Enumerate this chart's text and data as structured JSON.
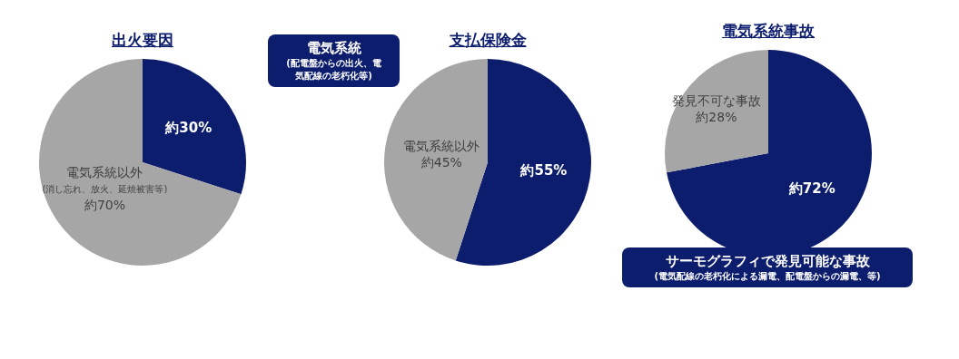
{
  "chart_data": [
    {
      "type": "pie",
      "title": "出火要因",
      "categories": [
        null,
        "電気系統以外\n(消し忘れ、放火、延焼被害等)"
      ],
      "values": [
        30,
        70
      ],
      "colors": [
        "#0c1d6e",
        "#a6a6a6"
      ],
      "value_labels": [
        "約30%",
        "約70%"
      ],
      "annotations": [
        "電気系統\n(配電盤からの出火、電気配線の老朽化等)"
      ]
    },
    {
      "type": "pie",
      "title": "支払保険金",
      "categories": [
        null,
        "電気系統以外"
      ],
      "values": [
        55,
        45
      ],
      "colors": [
        "#0c1d6e",
        "#a6a6a6"
      ],
      "value_labels": [
        "約55%",
        "約45%"
      ]
    },
    {
      "type": "pie",
      "title": "電気系統事故",
      "categories": [
        null,
        "発見不可な事故"
      ],
      "values": [
        72,
        28
      ],
      "colors": [
        "#0c1d6e",
        "#a6a6a6"
      ],
      "value_labels": [
        "約72%",
        "約28%"
      ],
      "annotations": [
        "サーモグラフィで発見可能な事故\n(電気配線の老朽化による漏電、配電盤からの漏電、等)"
      ]
    }
  ]
}
